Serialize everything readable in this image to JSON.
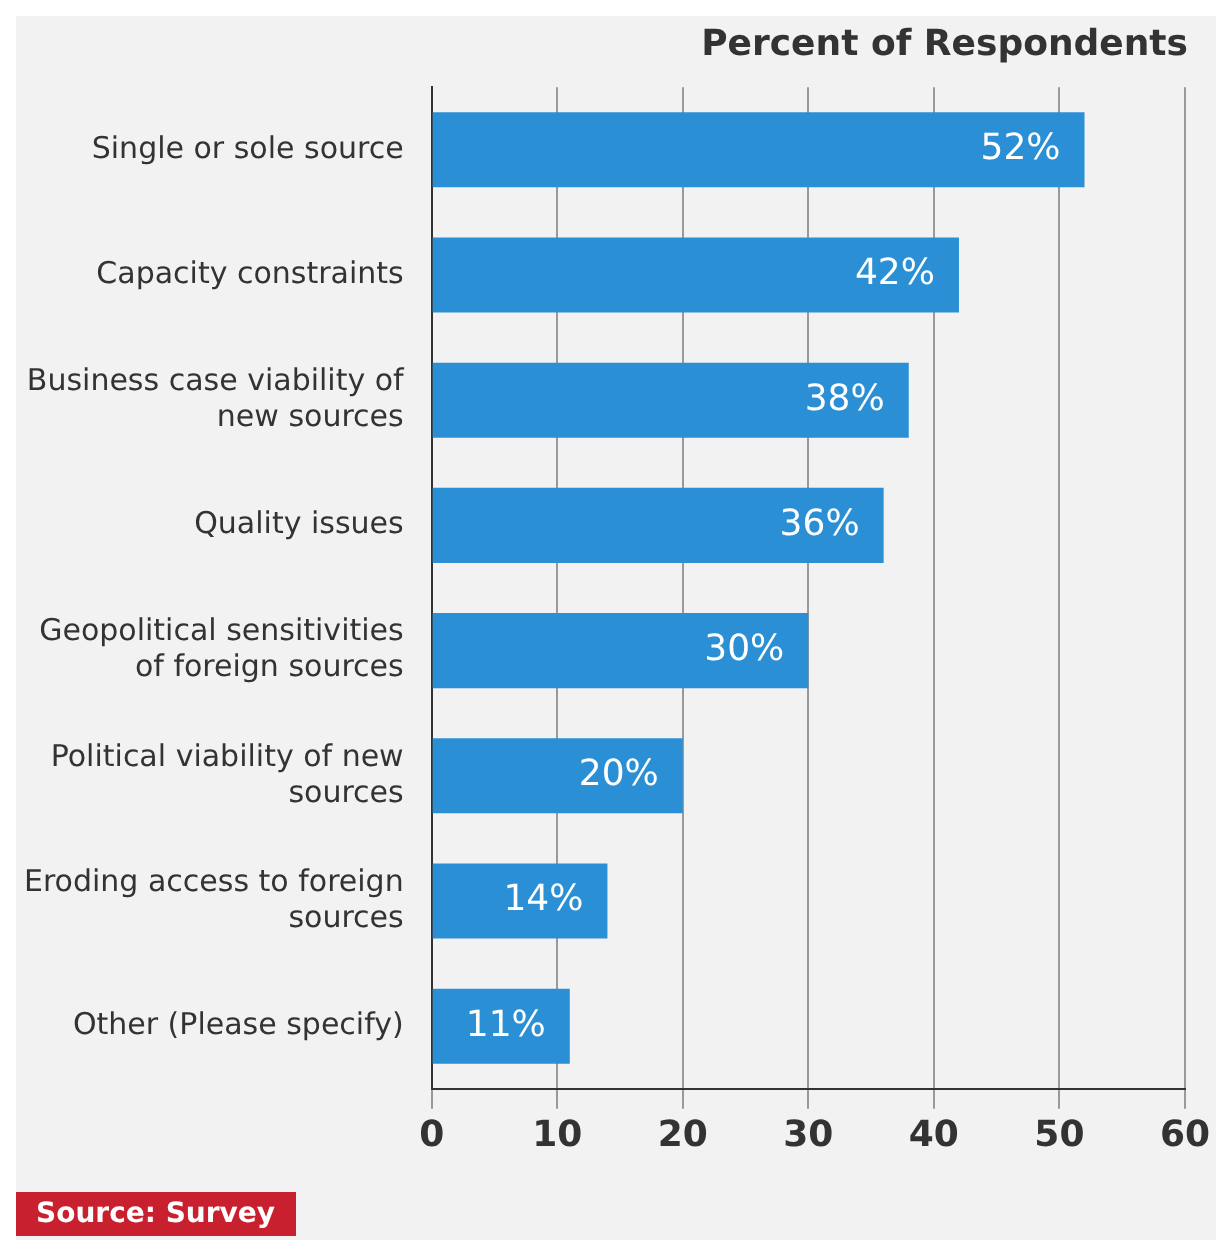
{
  "chart_data": {
    "type": "bar",
    "orientation": "horizontal",
    "title": "Percent of Respondents",
    "categories": [
      "Single or sole source",
      "Capacity constraints",
      "Business case viability of new sources",
      "Quality issues",
      "Geopolitical sensitivities of foreign sources",
      "Political viability of new sources",
      "Eroding access to foreign sources",
      "Other (Please specify)"
    ],
    "values": [
      52,
      42,
      38,
      36,
      30,
      20,
      14,
      11
    ],
    "value_labels": [
      "52%",
      "42%",
      "38%",
      "36%",
      "30%",
      "20%",
      "14%",
      "11%"
    ],
    "color": "#2a8fd4",
    "xlim": [
      0,
      60
    ],
    "xticks": [
      0,
      10,
      20,
      30,
      40,
      50,
      60
    ],
    "grid": "x",
    "legend": false,
    "annotations": [
      "Source: Survey"
    ]
  }
}
